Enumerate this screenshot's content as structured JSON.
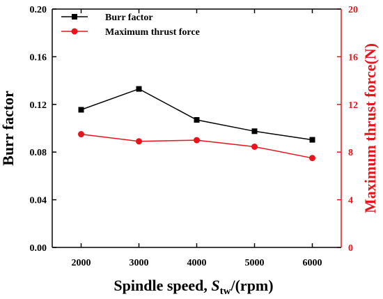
{
  "chart_data": {
    "type": "line",
    "x": [
      2000,
      3000,
      4000,
      5000,
      6000
    ],
    "xlim": [
      1500,
      6500
    ],
    "xticks": [
      2000,
      3000,
      4000,
      5000,
      6000
    ],
    "xlabel": "Spindle speed, ",
    "xlabel_var": "S",
    "xlabel_sub": "tw",
    "xlabel_unit": "/(rpm)",
    "ylabel_left": "Burr factor",
    "ylim_left": [
      0,
      0.2
    ],
    "yticks_left": [
      "0.00",
      "0.04",
      "0.08",
      "0.12",
      "0.16",
      "0.20"
    ],
    "ylabel_right": "Maximum thrust force(N)",
    "ylim_right": [
      0,
      20
    ],
    "yticks_right": [
      "0",
      "4",
      "8",
      "12",
      "16",
      "20"
    ],
    "legend_position": "top-left",
    "series": [
      {
        "name": "Burr factor",
        "axis": "left",
        "marker": "square",
        "color": "#000000",
        "values": [
          0.1155,
          0.133,
          0.107,
          0.0975,
          0.0903
        ]
      },
      {
        "name": "Maximum thrust force",
        "axis": "right",
        "marker": "circle",
        "color": "#e8141b",
        "values": [
          9.5,
          8.9,
          9.0,
          8.45,
          7.5
        ]
      }
    ]
  }
}
